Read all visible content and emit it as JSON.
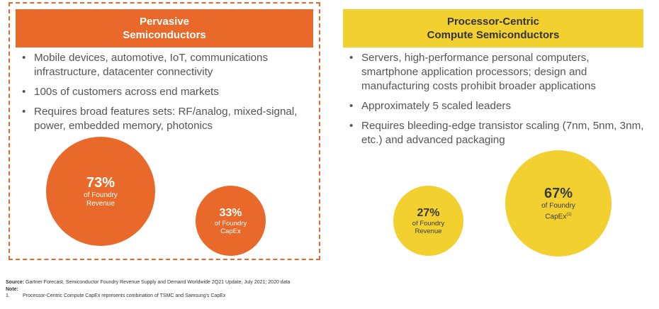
{
  "colors": {
    "orange": "#e8692a",
    "yellow": "#f2d02f",
    "text": "#555555"
  },
  "left_panel": {
    "title_line1": "Pervasive",
    "title_line2": "Semiconductors",
    "bullets": [
      "Mobile devices, automotive, IoT, communications infrastructure, datacenter connectivity",
      "100s of customers across end markets",
      "Requires broad features sets: RF/analog, mixed-signal, power, embedded memory, photonics"
    ],
    "circles": [
      {
        "value": "73%",
        "line1": "of Foundry",
        "line2": "Revenue"
      },
      {
        "value": "33%",
        "line1": "of Foundry",
        "line2": "CapEx"
      }
    ]
  },
  "right_panel": {
    "title_line1": "Processor-Centric",
    "title_line2": "Compute Semiconductors",
    "bullets": [
      "Servers, high-performance personal computers, smartphone application processors; design and manufacturing costs prohibit broader applications",
      "Approximately 5 scaled leaders",
      "Requires bleeding-edge transistor scaling (7nm, 5nm, 3nm, etc.) and advanced packaging"
    ],
    "circles": [
      {
        "value": "27%",
        "line1": "of Foundry",
        "line2": "Revenue"
      },
      {
        "value": "67%",
        "line1": "of Foundry",
        "line2": "CapEx",
        "superscript": "(1)"
      }
    ]
  },
  "footnotes": {
    "source_label": "Source:",
    "source_text": " Gartner Forecast, Semiconductor Foundry Revenue Supply and Demand Worldwide 2Q21 Update, July 2021; 2020 data",
    "note_label": "Note:",
    "note_number": "1.",
    "note_text": "Processor-Centric Compute CapEx represents combination of TSMC and Samsung's CapEx"
  }
}
